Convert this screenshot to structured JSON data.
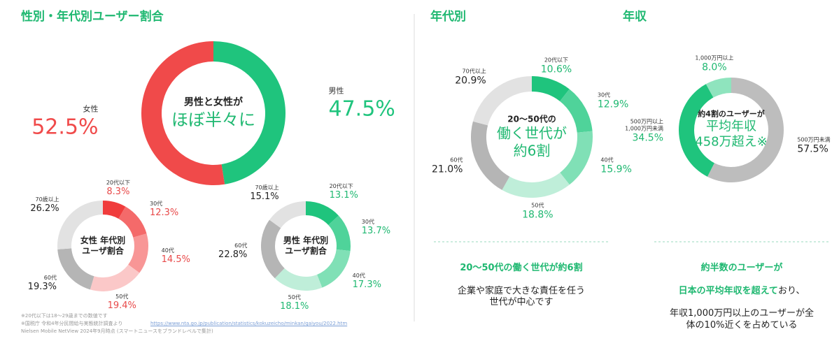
{
  "page": {
    "title": "性別・年代別ユーザー割合",
    "age_heading": "年代別",
    "income_heading": "年収",
    "age_summary": {
      "highlight": "20〜50代の働く世代が約6割",
      "body": "企業や家庭で大きな責任を任う\n世代が中心です"
    },
    "income_summary": {
      "line1": "約半数のユーザーが",
      "highlight": "日本の平均年収を超えて",
      "rest": "おり、",
      "body": "年収1,000万円以上のユーザーが全\n体の10%近くを占めている"
    },
    "notes": [
      "※20代以下は18〜29歳までの数値です",
      "※国税庁 令和4年分民間給与実態統計調査より",
      "Nielsen Mobile NetView 2024年9月時点 (スマートニュースをブランドレベルで集計)"
    ],
    "url": "https://www.nta.go.jp/publication/statistics/kokuzeicho/minkan/gaiyou/2022.htm"
  },
  "chart_data": [
    {
      "type": "pie",
      "center": [
        "男性と女性が",
        "ほぼ半々に"
      ],
      "categories": [
        "男性",
        "女性"
      ],
      "values": [
        47.5,
        52.5
      ],
      "value_labels": [
        "47.5%",
        "52.5%"
      ],
      "colors": [
        "#1fc47d",
        "#f04a4a"
      ],
      "label_colors": [
        "#1fc47d",
        "#f04a4a"
      ]
    },
    {
      "type": "pie",
      "center": [
        "女性 年代別",
        "ユーザ割合"
      ],
      "categories": [
        "20代以下",
        "30代",
        "40代",
        "50代",
        "60代",
        "70歳以上"
      ],
      "values": [
        8.3,
        12.3,
        14.5,
        19.4,
        19.3,
        26.2
      ],
      "value_labels": [
        "8.3%",
        "12.3%",
        "14.5%",
        "19.4%",
        "19.3%",
        "26.2%"
      ],
      "colors": [
        "#f03c3c",
        "#f46a6a",
        "#f89696",
        "#fbc8c8",
        "#b5b5b5",
        "#e2e2e2"
      ],
      "label_colors": [
        "#e84a4a",
        "#e84a4a",
        "#e84a4a",
        "#e84a4a",
        "#222222",
        "#222222"
      ]
    },
    {
      "type": "pie",
      "center": [
        "男性 年代別",
        "ユーザ割合"
      ],
      "categories": [
        "20代以下",
        "30代",
        "40代",
        "50代",
        "60代",
        "70歳以上"
      ],
      "values": [
        13.1,
        13.7,
        17.3,
        18.1,
        22.8,
        15.1
      ],
      "value_labels": [
        "13.1%",
        "13.7%",
        "17.3%",
        "18.1%",
        "22.8%",
        "15.1%"
      ],
      "colors": [
        "#1fc47d",
        "#4fd39a",
        "#80e0b6",
        "#bfeed9",
        "#b5b5b5",
        "#e2e2e2"
      ],
      "label_colors": [
        "#1fb871",
        "#1fb871",
        "#1fb871",
        "#1fb871",
        "#222222",
        "#222222"
      ]
    },
    {
      "type": "pie",
      "center": [
        "20〜50代の",
        "働く世代が",
        "約6割"
      ],
      "categories": [
        "20代以下",
        "30代",
        "40代",
        "50代",
        "60代",
        "70代以上"
      ],
      "values": [
        10.6,
        12.9,
        15.9,
        18.8,
        21.0,
        20.9
      ],
      "value_labels": [
        "10.6%",
        "12.9%",
        "15.9%",
        "18.8%",
        "21.0%",
        "20.9%"
      ],
      "colors": [
        "#1fc47d",
        "#4fd39a",
        "#80e0b6",
        "#bfeed9",
        "#b5b5b5",
        "#e2e2e2"
      ],
      "label_colors": [
        "#1fb871",
        "#1fb871",
        "#1fb871",
        "#1fb871",
        "#222222",
        "#222222"
      ]
    },
    {
      "type": "pie",
      "center": [
        "約4割のユーザーが",
        "平均年収",
        "458万超え※"
      ],
      "categories": [
        "500万円未満",
        "500万円以上\n1,000万円未満",
        "1,000万円以上"
      ],
      "values": [
        57.5,
        34.5,
        8.0
      ],
      "value_labels": [
        "57.5%",
        "34.5%",
        "8.0%"
      ],
      "colors": [
        "#bdbdbd",
        "#1fc47d",
        "#8fe4be"
      ],
      "label_colors": [
        "#222222",
        "#1fb871",
        "#1fb871"
      ]
    }
  ]
}
